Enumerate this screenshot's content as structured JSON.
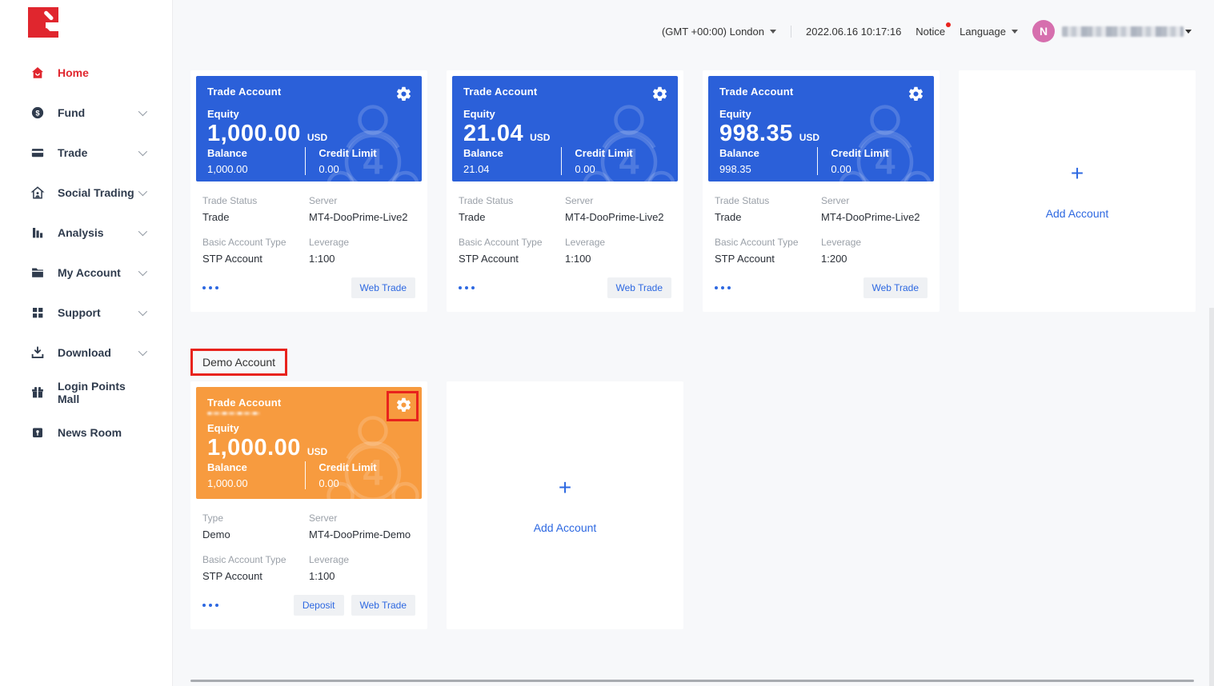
{
  "brand": {
    "logo_name": "doo-prime-logo"
  },
  "sidebar": {
    "items": [
      {
        "label": "Home",
        "icon": "home-icon",
        "active": true,
        "chevron": false
      },
      {
        "label": "Fund",
        "icon": "fund-icon",
        "active": false,
        "chevron": true
      },
      {
        "label": "Trade",
        "icon": "trade-wallet-icon",
        "active": false,
        "chevron": true
      },
      {
        "label": "Social Trading",
        "icon": "social-trading-icon",
        "active": false,
        "chevron": true
      },
      {
        "label": "Analysis",
        "icon": "analysis-bars-icon",
        "active": false,
        "chevron": true
      },
      {
        "label": "My Account",
        "icon": "folder-icon",
        "active": false,
        "chevron": true
      },
      {
        "label": "Support",
        "icon": "support-grid-icon",
        "active": false,
        "chevron": true
      },
      {
        "label": "Download",
        "icon": "download-icon",
        "active": false,
        "chevron": true
      },
      {
        "label": "Login Points Mall",
        "icon": "gift-icon",
        "active": false,
        "chevron": false
      },
      {
        "label": "News Room",
        "icon": "news-icon",
        "active": false,
        "chevron": false
      }
    ]
  },
  "topbar": {
    "timezone": "(GMT +00:00) London",
    "datetime": "2022.06.16 10:17:16",
    "notice": "Notice",
    "language": "Language",
    "avatar_initial": "N",
    "username_redacted": true
  },
  "accounts": {
    "labels": {
      "title": "Trade Account",
      "equity": "Equity",
      "currency": "USD",
      "balance": "Balance",
      "credit_limit": "Credit Limit"
    },
    "add_account_label": "Add Account",
    "demo_section_label": "Demo Account",
    "live": [
      {
        "equity": "1,000.00",
        "balance": "1,000.00",
        "credit_limit": "0.00",
        "details": [
          {
            "label": "Trade Status",
            "value": "Trade"
          },
          {
            "label": "Server",
            "value": "MT4-DooPrime-Live2"
          },
          {
            "label": "Basic Account Type",
            "value": "STP Account"
          },
          {
            "label": "Leverage",
            "value": "1:100"
          }
        ],
        "actions": [
          "Web Trade"
        ],
        "gear_annotated": false
      },
      {
        "equity": "21.04",
        "balance": "21.04",
        "credit_limit": "0.00",
        "details": [
          {
            "label": "Trade Status",
            "value": "Trade"
          },
          {
            "label": "Server",
            "value": "MT4-DooPrime-Live2"
          },
          {
            "label": "Basic Account Type",
            "value": "STP Account"
          },
          {
            "label": "Leverage",
            "value": "1:100"
          }
        ],
        "actions": [
          "Web Trade"
        ],
        "gear_annotated": false
      },
      {
        "equity": "998.35",
        "balance": "998.35",
        "credit_limit": "0.00",
        "details": [
          {
            "label": "Trade Status",
            "value": "Trade"
          },
          {
            "label": "Server",
            "value": "MT4-DooPrime-Live2"
          },
          {
            "label": "Basic Account Type",
            "value": "STP Account"
          },
          {
            "label": "Leverage",
            "value": "1:200"
          }
        ],
        "actions": [
          "Web Trade"
        ],
        "gear_annotated": false
      }
    ],
    "demo": [
      {
        "equity": "1,000.00",
        "balance": "1,000.00",
        "credit_limit": "0.00",
        "details": [
          {
            "label": "Type",
            "value": "Demo"
          },
          {
            "label": "Server",
            "value": "MT4-DooPrime-Demo"
          },
          {
            "label": "Basic Account Type",
            "value": "STP Account"
          },
          {
            "label": "Leverage",
            "value": "1:100"
          }
        ],
        "actions": [
          "Deposit",
          "Web Trade"
        ],
        "gear_annotated": true
      }
    ]
  },
  "colors": {
    "accent_blue": "#2b60d9",
    "accent_orange": "#f79b3f",
    "brand_red": "#e0262e",
    "link_blue": "#2d68e1",
    "annotation_red": "#e8231d",
    "avatar_pink": "#d66fae"
  }
}
